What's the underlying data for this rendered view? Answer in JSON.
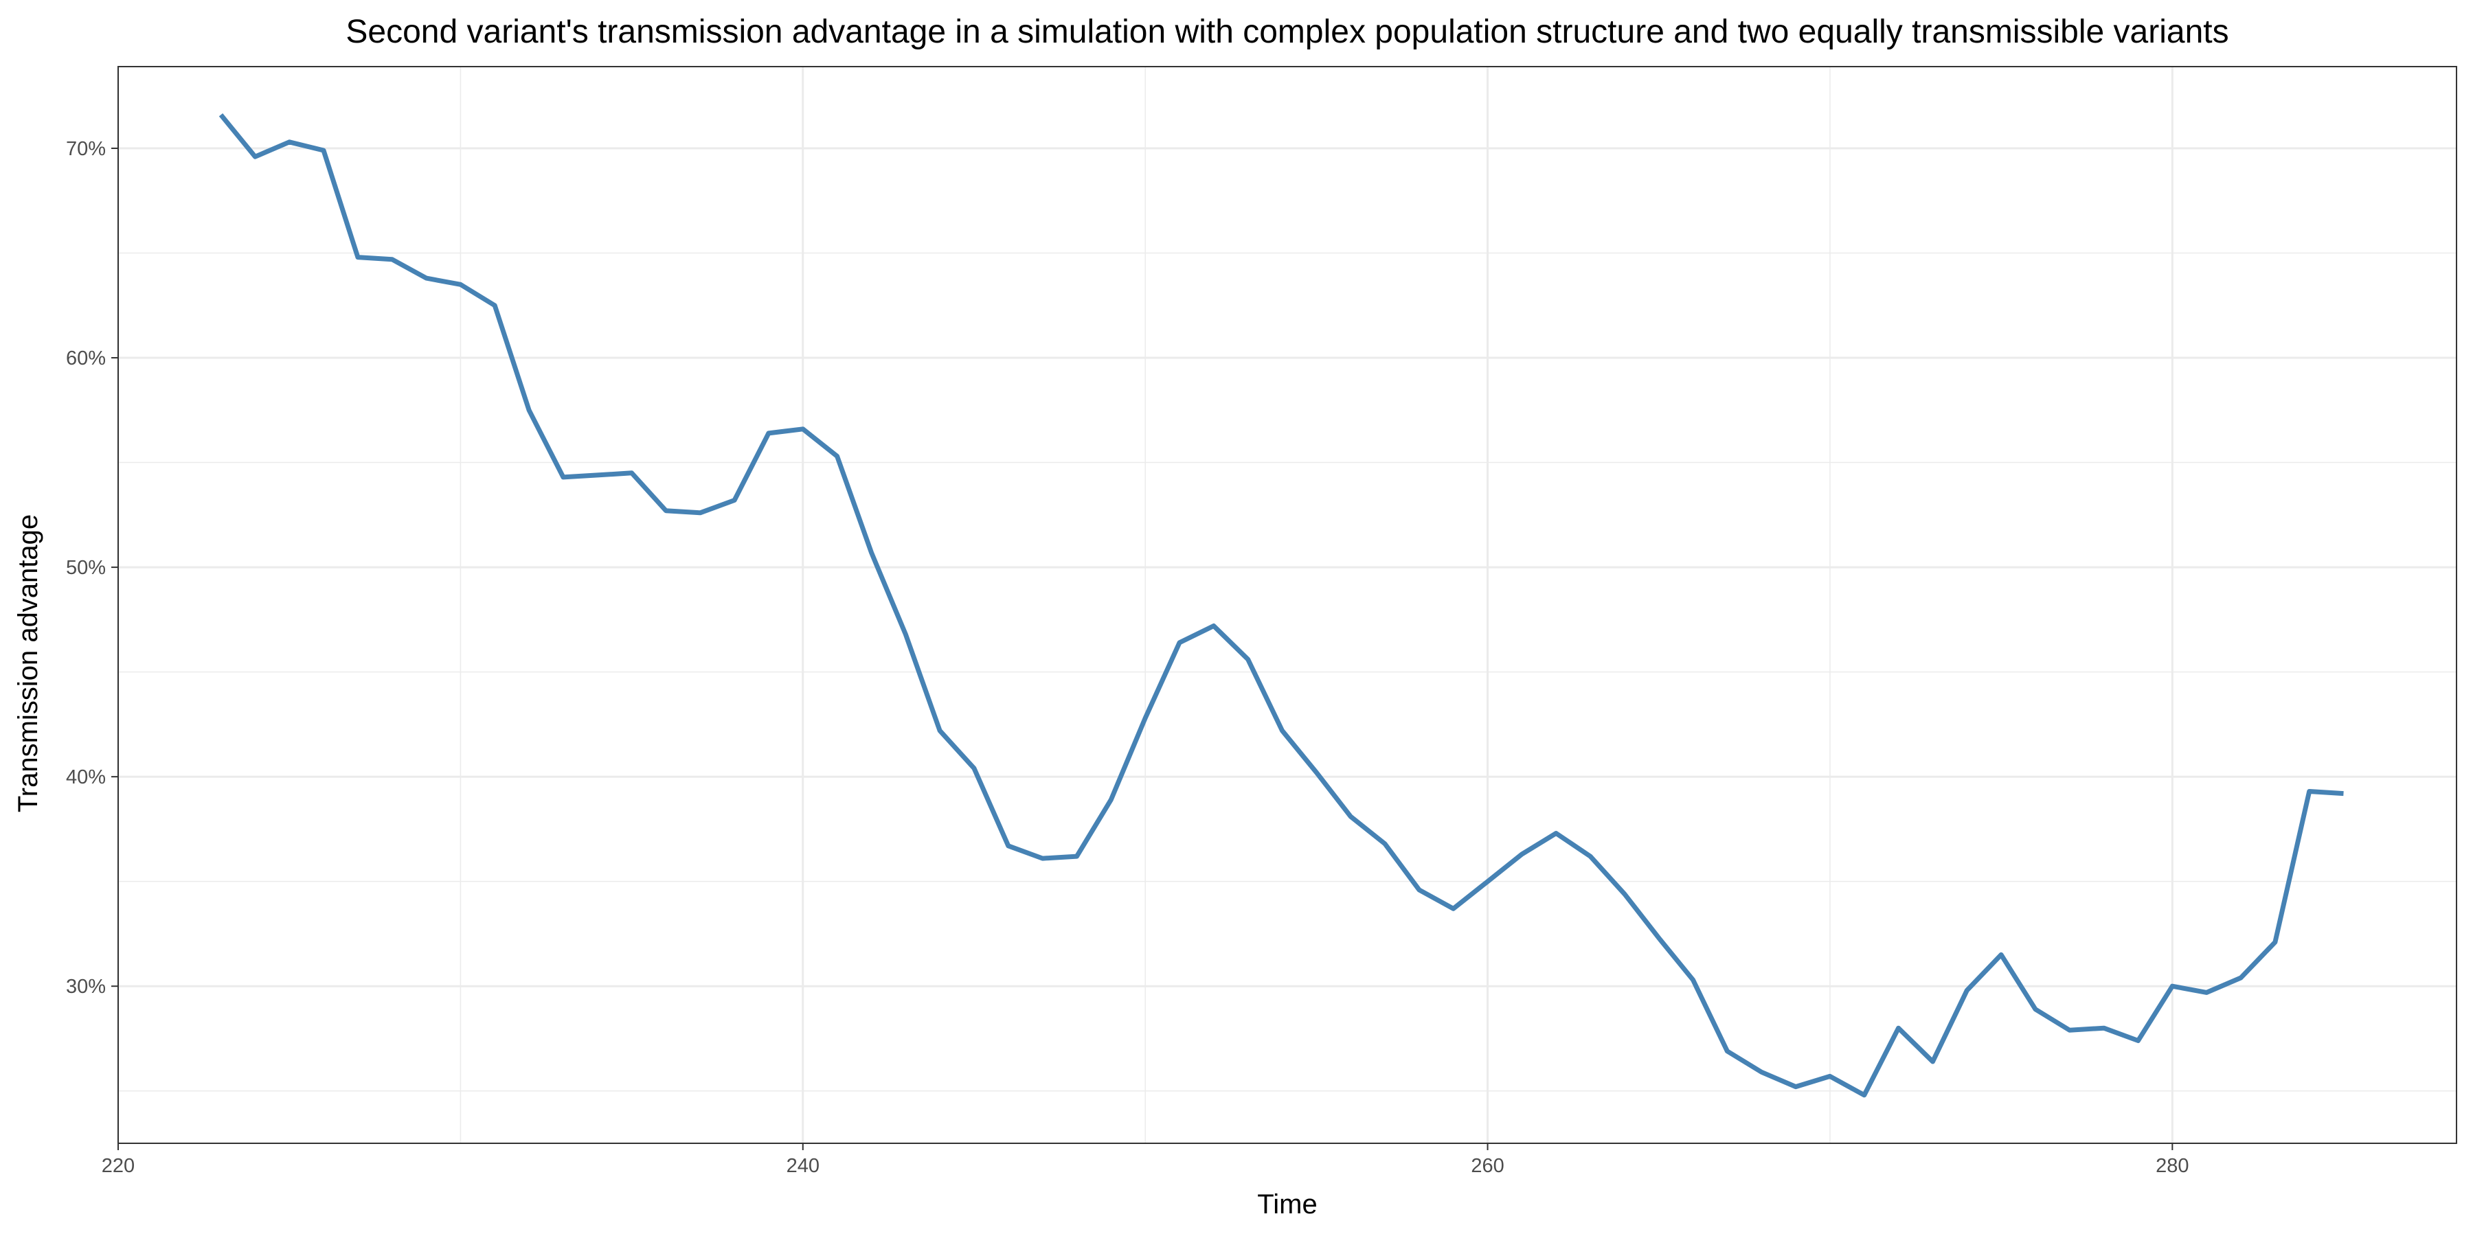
{
  "chart_data": {
    "type": "line",
    "title": "Second variant's transmission advantage in a simulation with complex population structure and two equally transmissible variants",
    "xlabel": "Time",
    "ylabel": "Transmission advantage",
    "xlim": [
      220,
      288.3
    ],
    "ylim": [
      22.5,
      73.9
    ],
    "x_ticks": [
      220,
      240,
      260,
      280
    ],
    "x_tick_labels": [
      "220",
      "240",
      "260",
      "280"
    ],
    "y_ticks": [
      30,
      40,
      50,
      60,
      70
    ],
    "y_tick_labels": [
      "30%",
      "40%",
      "50%",
      "60%",
      "70%"
    ],
    "x_minor_ticks": [
      230,
      250,
      270
    ],
    "y_minor_ticks": [
      25,
      35,
      45,
      55,
      65
    ],
    "grid": true,
    "legend": "none",
    "colors": {
      "line": "#4682B4",
      "grid": "#ebebeb",
      "border": "#333333",
      "tick_text": "#4d4d4d"
    },
    "series": [
      {
        "x": [
          223,
          224,
          225,
          226,
          227,
          228,
          229,
          230,
          231,
          232,
          233,
          234,
          235,
          236,
          237,
          238,
          239,
          240,
          241,
          242,
          243,
          244,
          245,
          246,
          247,
          248,
          249,
          250,
          251,
          252,
          253,
          254,
          255,
          256,
          257,
          258,
          259,
          260,
          261,
          262,
          263,
          264,
          265,
          266,
          267,
          268,
          269,
          270,
          271,
          272,
          273,
          274,
          275,
          276,
          277,
          278,
          279,
          280,
          281,
          282,
          283,
          284,
          285
        ],
        "values": [
          71.6,
          69.6,
          70.3,
          69.9,
          64.8,
          64.7,
          63.8,
          63.5,
          62.5,
          57.5,
          54.3,
          54.4,
          54.5,
          52.7,
          52.6,
          53.2,
          56.4,
          56.6,
          55.3,
          50.7,
          46.8,
          42.2,
          40.4,
          36.7,
          36.1,
          36.2,
          38.9,
          42.8,
          46.4,
          47.2,
          45.6,
          42.2,
          40.2,
          38.1,
          36.8,
          34.6,
          33.7,
          35.0,
          36.3,
          37.3,
          36.2,
          34.4,
          32.3,
          30.3,
          26.9,
          25.9,
          25.2,
          25.7,
          24.8,
          28.0,
          26.4,
          29.8,
          31.5,
          28.9,
          27.9,
          28.0,
          27.4,
          30.0,
          29.7,
          30.4,
          32.1,
          39.3,
          39.2
        ]
      }
    ]
  }
}
